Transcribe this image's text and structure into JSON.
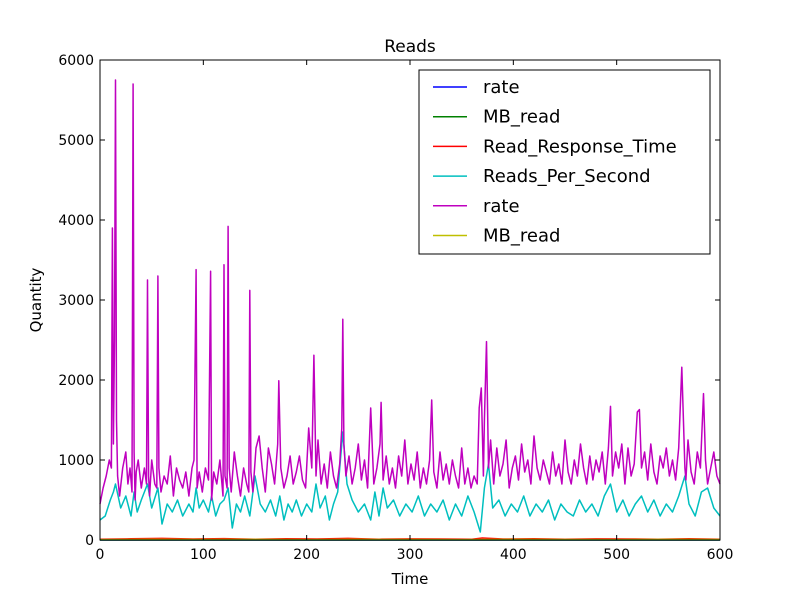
{
  "chart_data": {
    "type": "line",
    "title": "Reads",
    "xlabel": "Time",
    "ylabel": "Quantity",
    "xlim": [
      0,
      600
    ],
    "ylim": [
      0,
      6000
    ],
    "x_ticks": [
      0,
      100,
      200,
      300,
      400,
      500,
      600
    ],
    "y_ticks": [
      0,
      1000,
      2000,
      3000,
      4000,
      5000,
      6000
    ],
    "legend_position": "top-right",
    "grid": false,
    "series": [
      {
        "name": "rate",
        "color": "#0000ff",
        "x": [
          0,
          600
        ],
        "y": [
          0,
          0
        ]
      },
      {
        "name": "MB_read",
        "color": "#008000",
        "x": [
          0,
          600
        ],
        "y": [
          0,
          0
        ]
      },
      {
        "name": "Read_Response_Time",
        "color": "#ff0000",
        "x": [
          0,
          30,
          60,
          90,
          120,
          150,
          180,
          210,
          240,
          270,
          300,
          330,
          360,
          370,
          390,
          420,
          450,
          480,
          510,
          540,
          570,
          600
        ],
        "y": [
          10,
          15,
          20,
          12,
          18,
          10,
          15,
          12,
          20,
          10,
          14,
          12,
          10,
          25,
          12,
          15,
          10,
          14,
          12,
          10,
          15,
          10
        ]
      },
      {
        "name": "Reads_Per_Second",
        "color": "#00bfbf",
        "x": [
          0,
          5,
          10,
          13,
          15,
          20,
          25,
          30,
          33,
          36,
          40,
          46,
          50,
          56,
          60,
          65,
          70,
          75,
          80,
          86,
          90,
          93,
          96,
          100,
          105,
          108,
          112,
          116,
          120,
          124,
          128,
          132,
          136,
          140,
          145,
          150,
          155,
          160,
          165,
          170,
          174,
          178,
          182,
          186,
          190,
          195,
          200,
          205,
          209,
          213,
          218,
          222,
          226,
          230,
          235,
          239,
          244,
          250,
          256,
          262,
          266,
          270,
          274,
          278,
          284,
          290,
          296,
          302,
          308,
          314,
          320,
          326,
          332,
          338,
          344,
          350,
          356,
          362,
          368,
          372,
          376,
          380,
          386,
          392,
          398,
          404,
          410,
          416,
          422,
          428,
          434,
          440,
          446,
          452,
          458,
          464,
          470,
          476,
          482,
          488,
          494,
          500,
          506,
          512,
          518,
          524,
          530,
          536,
          542,
          548,
          554,
          560,
          566,
          570,
          576,
          582,
          588,
          594,
          600
        ],
        "y": [
          250,
          300,
          500,
          600,
          700,
          400,
          550,
          300,
          600,
          350,
          500,
          700,
          400,
          650,
          200,
          450,
          350,
          500,
          300,
          450,
          350,
          650,
          400,
          500,
          350,
          550,
          300,
          450,
          500,
          650,
          150,
          450,
          350,
          550,
          300,
          800,
          450,
          350,
          500,
          300,
          550,
          250,
          450,
          350,
          500,
          300,
          450,
          350,
          700,
          400,
          550,
          250,
          450,
          600,
          1350,
          700,
          500,
          350,
          450,
          250,
          600,
          300,
          650,
          400,
          500,
          300,
          450,
          350,
          550,
          300,
          450,
          350,
          500,
          250,
          450,
          300,
          550,
          350,
          100,
          650,
          950,
          400,
          500,
          300,
          450,
          350,
          550,
          300,
          450,
          350,
          500,
          250,
          450,
          350,
          300,
          500,
          350,
          450,
          300,
          550,
          700,
          350,
          500,
          300,
          450,
          550,
          350,
          500,
          300,
          450,
          350,
          550,
          800,
          450,
          300,
          600,
          650,
          400,
          300
        ]
      },
      {
        "name": "rate",
        "color": "#bf00bf",
        "x": [
          0,
          3,
          6,
          9,
          11,
          12,
          13,
          14,
          15,
          16,
          17,
          19,
          22,
          25,
          27,
          29,
          31,
          32,
          33,
          34,
          35,
          37,
          40,
          43,
          45,
          46,
          47,
          48,
          50,
          53,
          55,
          56,
          57,
          59,
          62,
          65,
          68,
          71,
          74,
          77,
          80,
          83,
          86,
          89,
          91,
          93,
          94,
          96,
          99,
          102,
          105,
          107,
          108,
          110,
          113,
          116,
          119,
          120,
          121,
          123,
          124,
          125,
          127,
          130,
          133,
          136,
          139,
          142,
          144,
          145,
          146,
          148,
          151,
          154,
          157,
          160,
          163,
          166,
          169,
          172,
          173,
          175,
          178,
          181,
          184,
          187,
          190,
          193,
          196,
          199,
          202,
          205,
          207,
          209,
          211,
          214,
          217,
          220,
          223,
          226,
          229,
          232,
          234,
          235,
          236,
          238,
          241,
          244,
          247,
          250,
          253,
          256,
          259,
          262,
          265,
          268,
          271,
          272,
          274,
          277,
          280,
          283,
          286,
          289,
          292,
          295,
          298,
          301,
          304,
          307,
          310,
          313,
          316,
          319,
          321,
          323,
          326,
          329,
          332,
          335,
          338,
          341,
          344,
          347,
          350,
          353,
          356,
          359,
          362,
          365,
          367,
          369,
          371,
          372,
          374,
          376,
          378,
          381,
          384,
          387,
          390,
          393,
          396,
          399,
          402,
          405,
          408,
          411,
          414,
          417,
          420,
          423,
          426,
          429,
          432,
          435,
          438,
          441,
          444,
          447,
          450,
          453,
          456,
          459,
          462,
          465,
          468,
          471,
          474,
          477,
          480,
          483,
          486,
          489,
          492,
          494,
          496,
          499,
          502,
          505,
          508,
          511,
          514,
          517,
          520,
          522,
          524,
          527,
          530,
          533,
          536,
          539,
          542,
          545,
          548,
          551,
          554,
          557,
          560,
          563,
          566,
          567,
          569,
          572,
          575,
          578,
          581,
          584,
          586,
          588,
          591,
          594,
          597,
          600
        ],
        "y": [
          450,
          650,
          800,
          1000,
          900,
          3900,
          1200,
          2500,
          5750,
          1500,
          800,
          550,
          900,
          1100,
          700,
          900,
          600,
          5700,
          1100,
          500,
          850,
          1000,
          650,
          900,
          700,
          3250,
          800,
          550,
          1000,
          700,
          650,
          3300,
          900,
          600,
          800,
          700,
          1050,
          550,
          900,
          750,
          650,
          850,
          550,
          900,
          1000,
          3380,
          650,
          850,
          600,
          900,
          750,
          3360,
          500,
          850,
          700,
          1000,
          550,
          3440,
          800,
          650,
          3920,
          900,
          600,
          1100,
          800,
          550,
          900,
          700,
          600,
          3120,
          850,
          600,
          1150,
          1300,
          900,
          600,
          1150,
          950,
          700,
          1200,
          1990,
          900,
          650,
          800,
          1050,
          700,
          850,
          1050,
          750,
          650,
          1400,
          900,
          2310,
          800,
          1250,
          700,
          950,
          650,
          1100,
          800,
          650,
          950,
          1400,
          2760,
          1200,
          800,
          1050,
          700,
          900,
          1200,
          750,
          1000,
          650,
          1650,
          700,
          900,
          1200,
          1720,
          750,
          1050,
          700,
          900,
          650,
          1050,
          800,
          1250,
          700,
          950,
          750,
          1100,
          650,
          900,
          700,
          1000,
          1750,
          850,
          650,
          1100,
          750,
          950,
          700,
          1000,
          800,
          650,
          1150,
          700,
          900,
          650,
          800,
          700,
          1650,
          1900,
          800,
          1500,
          2480,
          900,
          1250,
          700,
          1150,
          800,
          950,
          1250,
          650,
          900,
          1050,
          750,
          1200,
          850,
          1000,
          700,
          1300,
          900,
          750,
          1000,
          850,
          700,
          1100,
          800,
          950,
          700,
          1250,
          850,
          700,
          1000,
          800,
          1200,
          900,
          700,
          1050,
          750,
          1000,
          850,
          1100,
          700,
          1150,
          1670,
          800,
          1100,
          900,
          1200,
          700,
          1150,
          800,
          950,
          1600,
          1630,
          900,
          1100,
          750,
          1200,
          850,
          700,
          1050,
          900,
          1150,
          800,
          1000,
          750,
          1150,
          2160,
          900,
          750,
          1250,
          850,
          700,
          1100,
          900,
          1830,
          1000,
          700,
          900,
          1100,
          800,
          700
        ]
      },
      {
        "name": "MB_read",
        "color": "#bfbf00",
        "x": [
          0,
          50,
          100,
          150,
          200,
          250,
          300,
          350,
          400,
          450,
          500,
          550,
          600
        ],
        "y": [
          5,
          8,
          6,
          7,
          5,
          8,
          6,
          5,
          7,
          6,
          5,
          8,
          6
        ]
      }
    ]
  }
}
